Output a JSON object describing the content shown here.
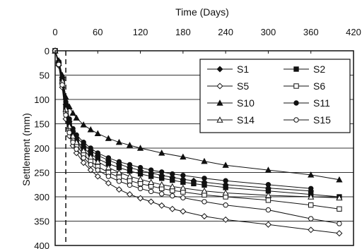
{
  "chart_data": {
    "type": "line",
    "xlabel": "Time (Days)",
    "ylabel": "Settlement (mm)",
    "xlim": [
      0,
      420
    ],
    "ylim": [
      0,
      400
    ],
    "y_inverted": true,
    "x_axis_position": "top",
    "x_ticks": [
      0,
      60,
      120,
      180,
      240,
      300,
      360,
      420
    ],
    "y_ticks": [
      0,
      50,
      100,
      150,
      200,
      250,
      300,
      350,
      400
    ],
    "grid": "horizontal",
    "reference_line_x": 15,
    "legend_position": "top-right",
    "series": [
      {
        "name": "S1",
        "marker": "diamond-filled",
        "x": [
          0,
          5,
          10,
          15,
          20,
          25,
          30,
          40,
          50,
          60,
          75,
          90,
          105,
          120,
          135,
          150,
          165,
          180,
          195,
          210,
          240,
          300,
          360
        ],
        "y": [
          0,
          25,
          60,
          110,
          145,
          165,
          178,
          192,
          205,
          215,
          225,
          233,
          240,
          246,
          251,
          256,
          260,
          264,
          267,
          270,
          275,
          282,
          288
        ]
      },
      {
        "name": "S2",
        "marker": "square-filled",
        "x": [
          0,
          5,
          10,
          15,
          20,
          25,
          30,
          40,
          50,
          60,
          75,
          90,
          105,
          120,
          135,
          150,
          165,
          180,
          195,
          210,
          240,
          300,
          360,
          400
        ],
        "y": [
          0,
          25,
          60,
          115,
          150,
          170,
          185,
          200,
          212,
          222,
          232,
          240,
          247,
          253,
          258,
          262,
          266,
          270,
          273,
          276,
          281,
          288,
          295,
          300
        ]
      },
      {
        "name": "S5",
        "marker": "diamond-open",
        "x": [
          0,
          5,
          10,
          15,
          20,
          25,
          30,
          40,
          50,
          60,
          75,
          90,
          105,
          120,
          135,
          150,
          165,
          180,
          210,
          240,
          300,
          360,
          400
        ],
        "y": [
          0,
          30,
          75,
          140,
          175,
          195,
          210,
          230,
          245,
          258,
          272,
          285,
          295,
          303,
          310,
          318,
          325,
          330,
          340,
          347,
          357,
          368,
          375
        ]
      },
      {
        "name": "S6",
        "marker": "square-open",
        "x": [
          0,
          5,
          10,
          15,
          20,
          25,
          30,
          40,
          50,
          60,
          75,
          90,
          105,
          120,
          135,
          150,
          165,
          180,
          210,
          240,
          300,
          360,
          400
        ],
        "y": [
          0,
          25,
          65,
          125,
          160,
          182,
          195,
          213,
          227,
          238,
          250,
          260,
          267,
          273,
          278,
          283,
          287,
          290,
          296,
          300,
          307,
          317,
          325
        ]
      },
      {
        "name": "S10",
        "marker": "triangle-filled",
        "x": [
          0,
          5,
          10,
          15,
          20,
          25,
          30,
          40,
          50,
          60,
          75,
          90,
          105,
          120,
          150,
          180,
          210,
          240,
          300,
          360,
          400
        ],
        "y": [
          0,
          20,
          50,
          95,
          115,
          128,
          138,
          152,
          162,
          170,
          180,
          188,
          194,
          200,
          210,
          218,
          227,
          235,
          245,
          255,
          265
        ]
      },
      {
        "name": "S11",
        "marker": "circle-filled",
        "x": [
          0,
          5,
          10,
          15,
          20,
          25,
          30,
          40,
          50,
          60,
          75,
          90,
          105,
          120,
          135,
          150,
          165,
          180,
          210,
          240,
          300,
          360
        ],
        "y": [
          0,
          22,
          55,
          105,
          140,
          160,
          173,
          188,
          200,
          210,
          220,
          228,
          234,
          240,
          245,
          249,
          253,
          256,
          262,
          267,
          275,
          283
        ]
      },
      {
        "name": "S14",
        "marker": "triangle-open",
        "x": [
          0,
          5,
          10,
          15,
          20,
          25,
          30,
          40,
          50,
          60,
          75,
          90,
          105,
          120,
          135,
          150,
          165,
          180,
          210,
          240,
          300,
          360,
          400
        ],
        "y": [
          0,
          25,
          62,
          120,
          155,
          175,
          188,
          205,
          218,
          228,
          240,
          250,
          258,
          264,
          270,
          275,
          279,
          282,
          288,
          292,
          297,
          300,
          302
        ]
      },
      {
        "name": "S15",
        "marker": "circle-open",
        "x": [
          0,
          5,
          10,
          15,
          20,
          25,
          30,
          40,
          50,
          60,
          75,
          90,
          105,
          120,
          135,
          150,
          165,
          180,
          210,
          240,
          300,
          360,
          400
        ],
        "y": [
          0,
          28,
          70,
          132,
          168,
          188,
          202,
          220,
          234,
          245,
          258,
          268,
          276,
          283,
          289,
          294,
          298,
          302,
          310,
          317,
          327,
          345,
          355
        ]
      }
    ]
  }
}
